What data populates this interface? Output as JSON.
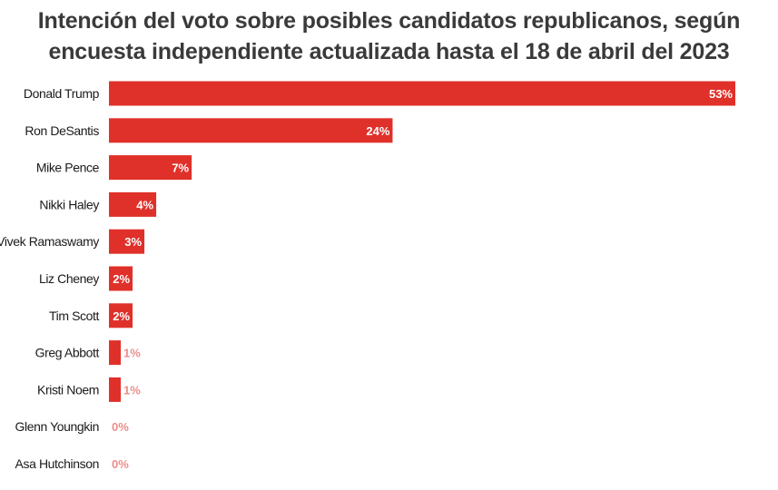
{
  "chart_data": {
    "type": "bar",
    "orientation": "horizontal",
    "title_lines": [
      "Intención del voto sobre posibles candidatos republicanos, según",
      "encuesta independiente actualizada hasta el 18 de abril del 2023"
    ],
    "categories": [
      "Donald Trump",
      "Ron DeSantis",
      "Mike Pence",
      "Nikki Haley",
      "Vivek Ramaswamy",
      "Liz Cheney",
      "Tim Scott",
      "Greg Abbott",
      "Kristi Noem",
      "Glenn Youngkin",
      "Asa Hutchinson"
    ],
    "values": [
      53,
      24,
      7,
      4,
      3,
      2,
      2,
      1,
      1,
      0,
      0
    ],
    "value_labels": [
      "53%",
      "24%",
      "7%",
      "4%",
      "3%",
      "2%",
      "2%",
      "1%",
      "1%",
      "0%",
      "0%"
    ],
    "unit": "%",
    "xlim": [
      0,
      53
    ],
    "grid": false,
    "legend": "none",
    "colors": {
      "bar": "#e0302a",
      "label_inside": "#ffffff",
      "label_outside": "#e0302a",
      "title": "#3a3a3a",
      "category_text": "#1a1a1a"
    }
  }
}
